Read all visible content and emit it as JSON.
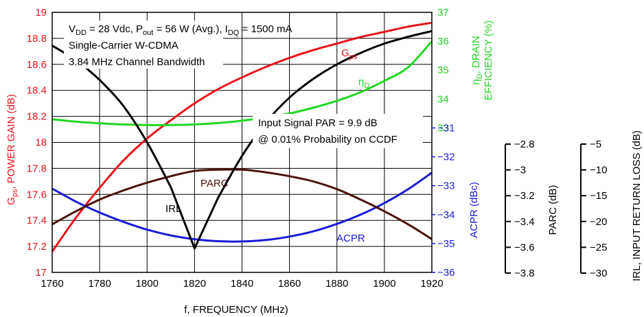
{
  "chart_data": {
    "type": "line",
    "x": [
      1760,
      1770,
      1780,
      1790,
      1800,
      1810,
      1820,
      1830,
      1840,
      1850,
      1860,
      1870,
      1880,
      1890,
      1900,
      1910,
      1920
    ],
    "xlim": [
      1760,
      1920
    ],
    "xticks": [
      "1760",
      "1780",
      "1800",
      "1820",
      "1840",
      "1860",
      "1880",
      "1900",
      "1920"
    ],
    "xlabel": "f, FREQUENCY (MHz)",
    "grid": true,
    "axes": {
      "gain": {
        "label": "G_ps, POWER GAIN (dB)",
        "label_main": "G",
        "label_sub": "ps",
        "label_rest": ", POWER GAIN (dB)",
        "ylim": [
          17,
          19
        ],
        "ticks": [
          "17",
          "17.2",
          "17.4",
          "17.6",
          "17.8",
          "18",
          "18.2",
          "18.4",
          "18.6",
          "18.8",
          "19"
        ],
        "color": "#e8141c"
      },
      "efficiency": {
        "label_line1_main": "η",
        "label_line1_sub": "D",
        "label_line1_rest": ", DRAIN",
        "label_line2": "EFFICIENCY (%)",
        "ylim": [
          28,
          37
        ],
        "ticks": [
          "33",
          "34",
          "35",
          "36",
          "37"
        ],
        "color": "#22d622"
      },
      "acpr": {
        "label": "ACPR (dBc)",
        "ylim": [
          -36,
          -27
        ],
        "ticks": [
          "-36",
          "-35",
          "-34",
          "-33",
          "-32",
          "-31"
        ],
        "color": "#1a1ad8"
      },
      "parc": {
        "label": "PARC (dB)",
        "ylim": [
          -3.8,
          -2.8
        ],
        "ticks": [
          "-2.8",
          "-3",
          "-3.2",
          "-3.4",
          "-3.6",
          "-3.8"
        ],
        "color": "#000000"
      },
      "irl": {
        "label": "IRL, INPUT RETURN LOSS (dB)",
        "ylim": [
          -30,
          -5
        ],
        "ticks": [
          "-5",
          "-10",
          "-15",
          "-20",
          "-25",
          "-30"
        ],
        "color": "#000000"
      }
    },
    "series": [
      {
        "label_main": "G",
        "label_sub": "ps",
        "axis": "gain",
        "color": "#e8141c",
        "values": [
          17.16,
          17.42,
          17.65,
          17.86,
          18.03,
          18.17,
          18.3,
          18.41,
          18.5,
          18.58,
          18.65,
          18.71,
          18.76,
          18.81,
          18.85,
          18.89,
          18.92
        ]
      },
      {
        "label_main": "η",
        "label_sub": "D",
        "axis": "efficiency",
        "color": "#22d622",
        "values": [
          33.3,
          33.22,
          33.16,
          33.12,
          33.1,
          33.1,
          33.12,
          33.17,
          33.25,
          33.36,
          33.5,
          33.7,
          33.94,
          34.24,
          34.63,
          35.1,
          36.0
        ]
      },
      {
        "label_main": "ACPR",
        "axis": "acpr",
        "color": "#1a1ad8",
        "values": [
          -33.1,
          -33.55,
          -33.93,
          -34.25,
          -34.52,
          -34.72,
          -34.85,
          -34.92,
          -34.93,
          -34.88,
          -34.76,
          -34.58,
          -34.32,
          -34.0,
          -33.6,
          -33.12,
          -32.55
        ]
      },
      {
        "label_main": "PARC",
        "axis": "parc",
        "color": "#4a1208",
        "values": [
          -3.615,
          -3.565,
          -3.52,
          -3.485,
          -3.455,
          -3.43,
          -3.41,
          -3.405,
          -3.405,
          -3.415,
          -3.43,
          -3.45,
          -3.48,
          -3.52,
          -3.565,
          -3.615,
          -3.672
        ]
      },
      {
        "label_main": "IRL",
        "axis": "irl",
        "color": "#000000",
        "values": [
          -8.2,
          -9.6,
          -11.5,
          -14.0,
          -17.5,
          -21.8,
          -27.7,
          -22.8,
          -18.8,
          -15.6,
          -13.2,
          -11.4,
          -10.0,
          -8.9,
          -8.0,
          -7.35,
          -6.8
        ]
      }
    ],
    "annotations": {
      "conditions": {
        "l1_a": "V",
        "l1_a_sub": "DD",
        "l1_b": " = 28 Vdc, P",
        "l1_b_sub": "out",
        "l1_c": " = 56 W (Avg.), I",
        "l1_c_sub": "DQ",
        "l1_d": " = 1500 mA",
        "l2": "Single-Carrier W-CDMA",
        "l3": "3.84 MHz Channel Bandwidth"
      },
      "par": {
        "l1": "Input Signal PAR = 9.9 dB",
        "l2": "@ 0.01% Probability on CCDF"
      }
    }
  }
}
